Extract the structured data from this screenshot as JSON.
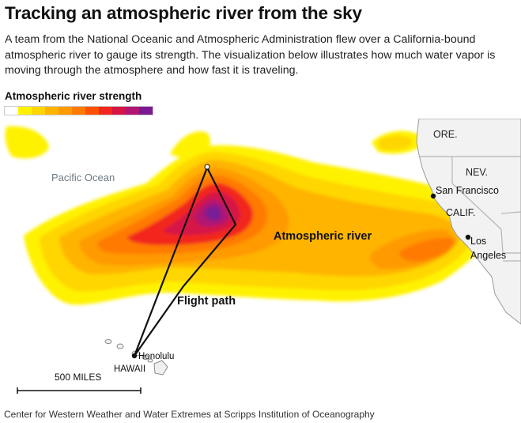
{
  "header": {
    "title": "Tracking an atmospheric river from the sky",
    "description": "A team from the National Oceanic and Atmospheric Administration flew over a California-bound atmospheric river to gauge its strength. The visualization below illustrates how much water vapor is moving through the atmosphere and how fast it is traveling."
  },
  "legend": {
    "title": "Atmospheric river strength",
    "colors": [
      "#ffffff",
      "#fff200",
      "#ffd600",
      "#ffb400",
      "#ff9a00",
      "#ff7a00",
      "#ff5000",
      "#f2261c",
      "#d61547",
      "#b01672",
      "#7a1a93"
    ]
  },
  "map": {
    "labels": {
      "ocean": "Pacific Ocean",
      "ore": "ORE.",
      "nev": "NEV.",
      "calif": "CALIF.",
      "san_francisco": "San Francisco",
      "los": "Los",
      "angeles": "Angeles",
      "atmospheric_river": "Atmospheric river",
      "flight_path": "Flight path",
      "honolulu": "Honolulu",
      "hawaii": "HAWAII",
      "scale": "500 MILES"
    },
    "colors": {
      "land": "#f2f2f2",
      "border": "#b5b5b5",
      "flight_path": "#111111"
    }
  },
  "footer": {
    "source": "Center for Western Weather and Water Extremes at Scripps Institution of Oceanography"
  }
}
